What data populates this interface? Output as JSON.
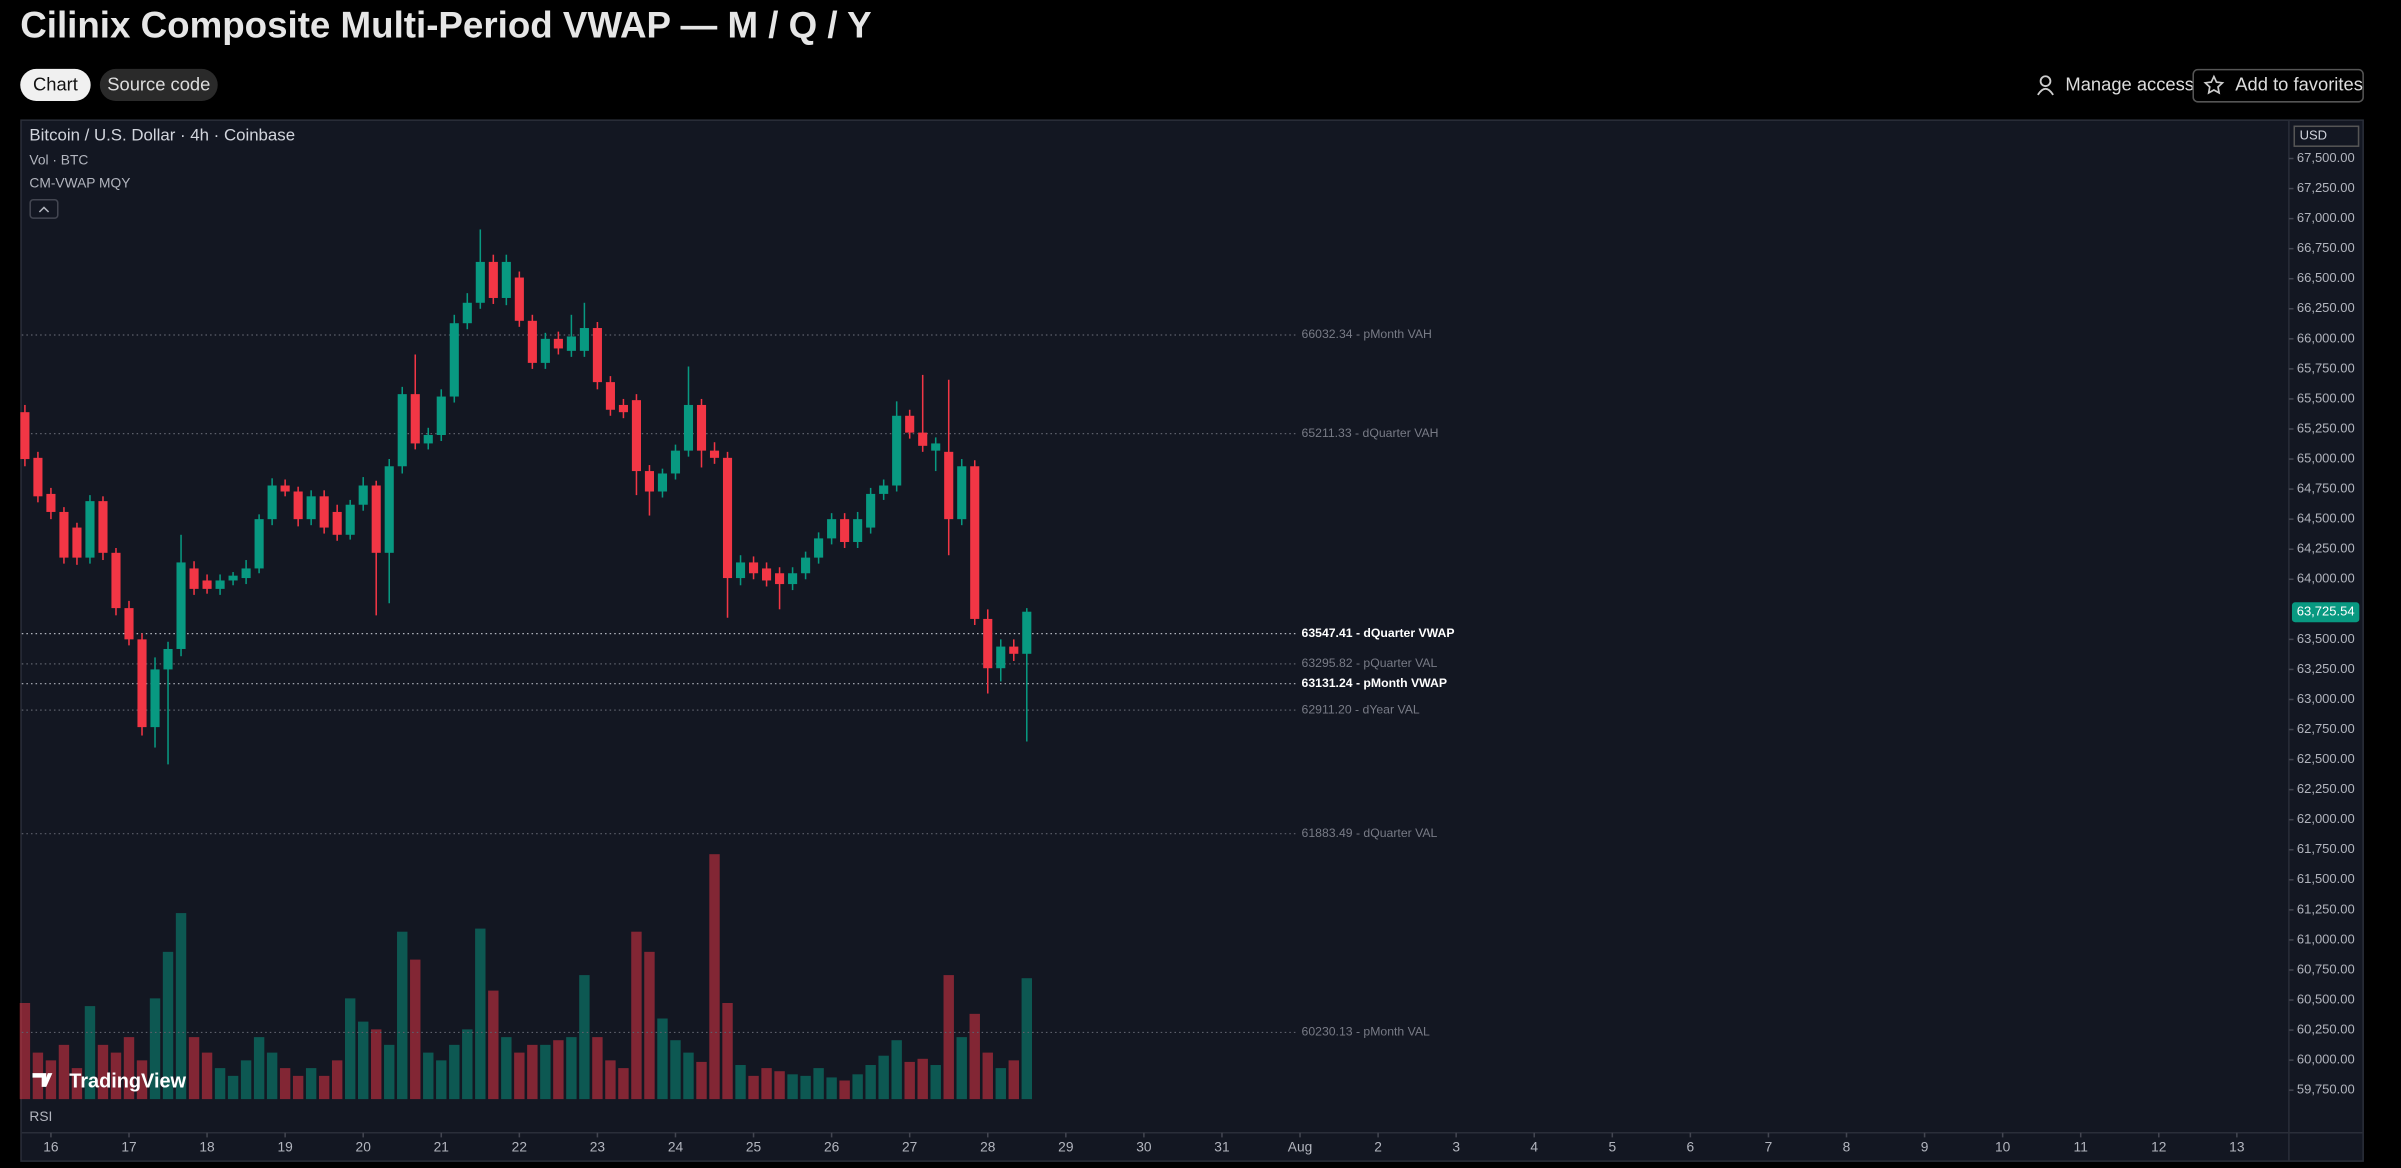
{
  "header": {
    "title": "Cilinix Composite Multi-Period VWAP — M / Q / Y",
    "tabs": [
      "Chart",
      "Source code"
    ],
    "actions": [
      "Manage access",
      "Add to favorites"
    ]
  },
  "chart_data": {
    "type": "candlestick",
    "legend": {
      "symbol": "Bitcoin / U.S. Dollar · 4h · Coinbase",
      "volume": "Vol · BTC",
      "indicator": "CM-VWAP MQY"
    },
    "currency": "USD",
    "lower_pane": "RSI",
    "watermark": "TradingView",
    "up_color": "#089981",
    "down_color": "#f23645",
    "open": [
      65390,
      65010,
      64710,
      64560,
      64430,
      64180,
      64650,
      64220,
      63760,
      63500,
      62770,
      63250,
      63420,
      64090,
      63990,
      63920,
      63990,
      64010,
      64090,
      64500,
      64780,
      64730,
      64500,
      64690,
      64560,
      64370,
      64620,
      64780,
      64220,
      64940,
      65540,
      65130,
      65200,
      65520,
      66130,
      66300,
      66640,
      66340,
      66510,
      66150,
      65800,
      66000,
      65900,
      65900,
      66090,
      65640,
      65450,
      65490,
      64900,
      64730,
      64880,
      65070,
      65450,
      65070,
      65010,
      64010,
      64140,
      64090,
      64050,
      63960,
      64050,
      64180,
      64340,
      64500,
      64310,
      64430,
      64710,
      64780,
      65360,
      65220,
      65070,
      65060,
      64500,
      64940,
      63670,
      63260,
      63440,
      63380
    ],
    "high": [
      65450,
      65060,
      64760,
      64600,
      64470,
      64700,
      64690,
      64260,
      63820,
      63550,
      63350,
      63480,
      64370,
      64150,
      64040,
      64040,
      64060,
      64160,
      64540,
      64840,
      64830,
      64770,
      64740,
      64740,
      64620,
      64660,
      64850,
      64820,
      65000,
      65600,
      65870,
      65260,
      65580,
      66200,
      66380,
      66910,
      66700,
      66700,
      66560,
      66200,
      66050,
      66060,
      66200,
      66300,
      66140,
      65690,
      65500,
      65540,
      64950,
      64920,
      65120,
      65770,
      65500,
      65140,
      65060,
      64200,
      64190,
      64140,
      64100,
      64100,
      64230,
      64390,
      64550,
      64550,
      64560,
      64760,
      64830,
      65480,
      65410,
      65700,
      65180,
      65660,
      65000,
      64990,
      63750,
      63500,
      63500,
      63760
    ],
    "low": [
      64940,
      64640,
      64500,
      64130,
      64120,
      64130,
      64160,
      63700,
      63450,
      62700,
      62600,
      62460,
      63360,
      63870,
      63880,
      63870,
      63950,
      63960,
      64050,
      64450,
      64690,
      64440,
      64450,
      64380,
      64320,
      64330,
      64570,
      63700,
      63800,
      64880,
      65080,
      65080,
      65150,
      65470,
      66080,
      66250,
      66290,
      66280,
      66100,
      65750,
      65750,
      65870,
      65850,
      65850,
      65580,
      65360,
      65340,
      64700,
      64530,
      64680,
      64830,
      65020,
      64930,
      64960,
      63680,
      63950,
      64000,
      63940,
      63750,
      63910,
      64000,
      64130,
      64290,
      64260,
      64260,
      64380,
      64660,
      64730,
      65170,
      65060,
      64900,
      64200,
      64450,
      63620,
      63050,
      63150,
      63320,
      62650
    ],
    "close": [
      65000,
      64690,
      64560,
      64180,
      64180,
      64650,
      64220,
      63760,
      63500,
      62770,
      63250,
      63420,
      64140,
      63920,
      63920,
      63990,
      64030,
      64090,
      64500,
      64780,
      64730,
      64500,
      64690,
      64430,
      64370,
      64620,
      64780,
      64220,
      64940,
      65540,
      65130,
      65200,
      65520,
      66130,
      66300,
      66640,
      66340,
      66640,
      66150,
      65800,
      66000,
      65920,
      66020,
      66090,
      65640,
      65410,
      65390,
      64900,
      64730,
      64880,
      65070,
      65450,
      65070,
      65010,
      64010,
      64140,
      64050,
      63990,
      63960,
      64050,
      64180,
      64340,
      64500,
      64310,
      64500,
      64710,
      64780,
      65360,
      65220,
      65110,
      65130,
      64500,
      64940,
      63670,
      63260,
      63440,
      63380,
      63730
    ],
    "volume": [
      62,
      30,
      25,
      35,
      20,
      60,
      35,
      30,
      40,
      25,
      65,
      95,
      120,
      40,
      30,
      20,
      15,
      25,
      40,
      30,
      20,
      15,
      20,
      15,
      25,
      65,
      50,
      45,
      35,
      108,
      90,
      30,
      25,
      35,
      45,
      110,
      70,
      40,
      30,
      35,
      35,
      38,
      40,
      80,
      40,
      25,
      20,
      108,
      95,
      52,
      38,
      30,
      24,
      158,
      62,
      22,
      15,
      20,
      18,
      16,
      15,
      20,
      14,
      12,
      16,
      22,
      28,
      38,
      24,
      26,
      22,
      80,
      40,
      55,
      30,
      20,
      25,
      78
    ],
    "levels": [
      {
        "value": 66032.34,
        "label": "66032.34 - pMonth VAH"
      },
      {
        "value": 65211.33,
        "label": "65211.33 - dQuarter VAH"
      },
      {
        "value": 63547.41,
        "label": "63547.41 - dQuarter VWAP",
        "emphasis": true
      },
      {
        "value": 63295.82,
        "label": "63295.82 - pQuarter VAL"
      },
      {
        "value": 63131.24,
        "label": "63131.24 - pMonth VWAP",
        "emphasis": true
      },
      {
        "value": 62911.2,
        "label": "62911.20 - dYear VAL"
      },
      {
        "value": 61883.49,
        "label": "61883.49 - dQuarter VAL"
      },
      {
        "value": 60230.13,
        "label": "60230.13 - pMonth VAL"
      }
    ],
    "last_price": {
      "value": 63725.54,
      "label": "63,725.54"
    },
    "xlim": [
      -0.24,
      174
    ],
    "xticks": [
      {
        "value": 2,
        "label": "16"
      },
      {
        "value": 8,
        "label": "17"
      },
      {
        "value": 14,
        "label": "18"
      },
      {
        "value": 20,
        "label": "19"
      },
      {
        "value": 26,
        "label": "20"
      },
      {
        "value": 32,
        "label": "21"
      },
      {
        "value": 38,
        "label": "22"
      },
      {
        "value": 44,
        "label": "23"
      },
      {
        "value": 50,
        "label": "24"
      },
      {
        "value": 56,
        "label": "25"
      },
      {
        "value": 62,
        "label": "26"
      },
      {
        "value": 68,
        "label": "27"
      },
      {
        "value": 74,
        "label": "28"
      },
      {
        "value": 80,
        "label": "29"
      },
      {
        "value": 86,
        "label": "30"
      },
      {
        "value": 92,
        "label": "31"
      },
      {
        "value": 98,
        "label": "Aug"
      },
      {
        "value": 104,
        "label": "2"
      },
      {
        "value": 110,
        "label": "3"
      },
      {
        "value": 116,
        "label": "4"
      },
      {
        "value": 122,
        "label": "5"
      },
      {
        "value": 128,
        "label": "6"
      },
      {
        "value": 134,
        "label": "7"
      },
      {
        "value": 140,
        "label": "8"
      },
      {
        "value": 146,
        "label": "9"
      },
      {
        "value": 152,
        "label": "10"
      },
      {
        "value": 158,
        "label": "11"
      },
      {
        "value": 164,
        "label": "12"
      },
      {
        "value": 170,
        "label": "13"
      }
    ],
    "ylim": [
      59650,
      67800
    ],
    "yticks": [
      {
        "value": 59750,
        "label": "59,750.00"
      },
      {
        "value": 60000,
        "label": "60,000.00"
      },
      {
        "value": 60250,
        "label": "60,250.00"
      },
      {
        "value": 60500,
        "label": "60,500.00"
      },
      {
        "value": 60750,
        "label": "60,750.00"
      },
      {
        "value": 61000,
        "label": "61,000.00"
      },
      {
        "value": 61250,
        "label": "61,250.00"
      },
      {
        "value": 61500,
        "label": "61,500.00"
      },
      {
        "value": 61750,
        "label": "61,750.00"
      },
      {
        "value": 62000,
        "label": "62,000.00"
      },
      {
        "value": 62250,
        "label": "62,250.00"
      },
      {
        "value": 62500,
        "label": "62,500.00"
      },
      {
        "value": 62750,
        "label": "62,750.00"
      },
      {
        "value": 63000,
        "label": "63,000.00"
      },
      {
        "value": 63250,
        "label": "63,250.00"
      },
      {
        "value": 63500,
        "label": "63,500.00"
      },
      {
        "value": 64000,
        "label": "64,000.00"
      },
      {
        "value": 64250,
        "label": "64,250.00"
      },
      {
        "value": 64500,
        "label": "64,500.00"
      },
      {
        "value": 64750,
        "label": "64,750.00"
      },
      {
        "value": 65000,
        "label": "65,000.00"
      },
      {
        "value": 65250,
        "label": "65,250.00"
      },
      {
        "value": 65500,
        "label": "65,500.00"
      },
      {
        "value": 65750,
        "label": "65,750.00"
      },
      {
        "value": 66000,
        "label": "66,000.00"
      },
      {
        "value": 66250,
        "label": "66,250.00"
      },
      {
        "value": 66500,
        "label": "66,500.00"
      },
      {
        "value": 66750,
        "label": "66,750.00"
      },
      {
        "value": 67000,
        "label": "67,000.00"
      },
      {
        "value": 67250,
        "label": "67,250.00"
      },
      {
        "value": 67500,
        "label": "67,500.00"
      }
    ]
  }
}
